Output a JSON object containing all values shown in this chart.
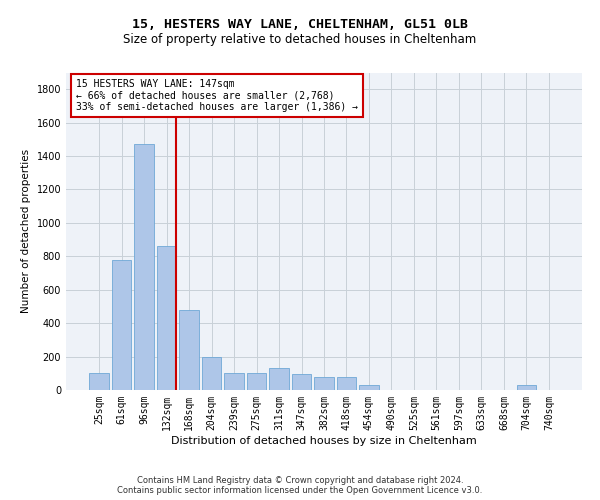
{
  "title1": "15, HESTERS WAY LANE, CHELTENHAM, GL51 0LB",
  "title2": "Size of property relative to detached houses in Cheltenham",
  "xlabel": "Distribution of detached houses by size in Cheltenham",
  "ylabel": "Number of detached properties",
  "categories": [
    "25sqm",
    "61sqm",
    "96sqm",
    "132sqm",
    "168sqm",
    "204sqm",
    "239sqm",
    "275sqm",
    "311sqm",
    "347sqm",
    "382sqm",
    "418sqm",
    "454sqm",
    "490sqm",
    "525sqm",
    "561sqm",
    "597sqm",
    "633sqm",
    "668sqm",
    "704sqm",
    "740sqm"
  ],
  "values": [
    100,
    780,
    1470,
    860,
    480,
    200,
    100,
    100,
    130,
    95,
    80,
    80,
    30,
    0,
    0,
    0,
    0,
    0,
    0,
    30,
    0
  ],
  "bar_color": "#aec6e8",
  "bar_edge_color": "#6fa8d6",
  "bar_width": 0.85,
  "vline_x": 3.42,
  "vline_color": "#cc0000",
  "annotation_line1": "15 HESTERS WAY LANE: 147sqm",
  "annotation_line2": "← 66% of detached houses are smaller (2,768)",
  "annotation_line3": "33% of semi-detached houses are larger (1,386) →",
  "annotation_box_color": "#ffffff",
  "annotation_box_edge": "#cc0000",
  "ylim": [
    0,
    1900
  ],
  "yticks": [
    0,
    200,
    400,
    600,
    800,
    1000,
    1200,
    1400,
    1600,
    1800
  ],
  "grid_color": "#c8d0d8",
  "background_color": "#eef2f8",
  "footer": "Contains HM Land Registry data © Crown copyright and database right 2024.\nContains public sector information licensed under the Open Government Licence v3.0.",
  "title1_fontsize": 9.5,
  "title2_fontsize": 8.5,
  "xlabel_fontsize": 8,
  "ylabel_fontsize": 7.5,
  "tick_fontsize": 7,
  "annotation_fontsize": 7,
  "footer_fontsize": 6
}
